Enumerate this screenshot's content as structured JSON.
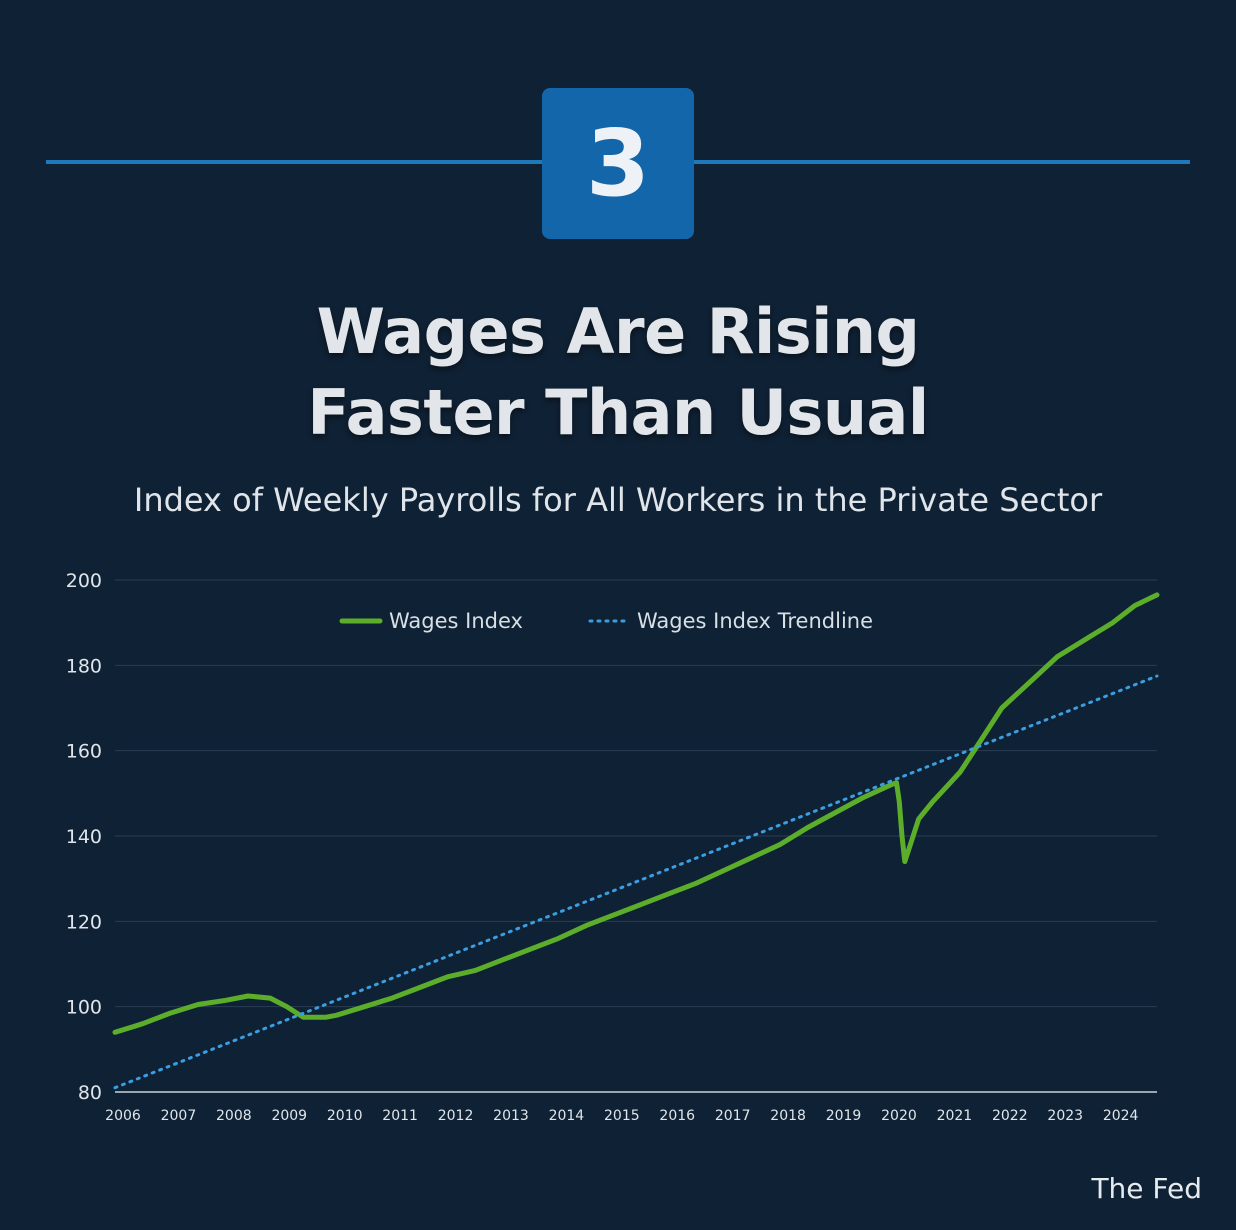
{
  "badge": {
    "number": "3"
  },
  "header": {
    "title_line1": "Wages Are Rising",
    "title_line2": "Faster Than Usual",
    "subtitle": "Index of Weekly Payrolls for All Workers in the Private Sector"
  },
  "footer": {
    "source": "The Fed"
  },
  "colors": {
    "background": "#0f2134",
    "accent": "#1f78b9",
    "badge": "#1366aa",
    "wages_line": "#5cae2a",
    "trendline": "#3a9ee0"
  },
  "chart_data": {
    "type": "line",
    "title": "Index of Weekly Payrolls for All Workers in the Private Sector",
    "xlabel": "",
    "ylabel": "",
    "xlim": [
      2006,
      2024.8
    ],
    "ylim": [
      80,
      200
    ],
    "y_ticks": [
      "80",
      "100",
      "120",
      "140",
      "160",
      "180",
      "200"
    ],
    "x_ticks": [
      "2006",
      "2007",
      "2008",
      "2009",
      "2010",
      "2011",
      "2012",
      "2013",
      "2014",
      "2015",
      "2016",
      "2017",
      "2018",
      "2019",
      "2020",
      "2021",
      "2022",
      "2023",
      "2024"
    ],
    "grid": "horizontal",
    "legend_position": "top-center",
    "series": [
      {
        "name": "Wages Index",
        "style": "solid",
        "points": [
          [
            2006.0,
            94
          ],
          [
            2006.5,
            96
          ],
          [
            2007.0,
            98.5
          ],
          [
            2007.5,
            100.5
          ],
          [
            2008.0,
            101.5
          ],
          [
            2008.4,
            102.5
          ],
          [
            2008.8,
            102
          ],
          [
            2009.1,
            100
          ],
          [
            2009.4,
            97.5
          ],
          [
            2009.8,
            97.5
          ],
          [
            2010.0,
            98
          ],
          [
            2010.5,
            100
          ],
          [
            2011.0,
            102
          ],
          [
            2011.5,
            104.5
          ],
          [
            2012.0,
            107
          ],
          [
            2012.5,
            108.5
          ],
          [
            2013.0,
            111
          ],
          [
            2013.5,
            113.5
          ],
          [
            2014.0,
            116
          ],
          [
            2014.5,
            119
          ],
          [
            2015.0,
            121.5
          ],
          [
            2015.5,
            124
          ],
          [
            2016.0,
            126.5
          ],
          [
            2016.5,
            129
          ],
          [
            2017.0,
            132
          ],
          [
            2017.5,
            135
          ],
          [
            2018.0,
            138
          ],
          [
            2018.5,
            142
          ],
          [
            2019.0,
            145.5
          ],
          [
            2019.5,
            149
          ],
          [
            2020.0,
            152
          ],
          [
            2020.1,
            152.5
          ],
          [
            2020.15,
            148
          ],
          [
            2020.2,
            140
          ],
          [
            2020.25,
            134
          ],
          [
            2020.35,
            138
          ],
          [
            2020.5,
            144
          ],
          [
            2020.75,
            148
          ],
          [
            2021.0,
            151.5
          ],
          [
            2021.25,
            155
          ],
          [
            2021.5,
            160
          ],
          [
            2021.75,
            165
          ],
          [
            2022.0,
            170
          ],
          [
            2022.5,
            176
          ],
          [
            2023.0,
            182
          ],
          [
            2023.5,
            186
          ],
          [
            2024.0,
            190
          ],
          [
            2024.4,
            194
          ],
          [
            2024.8,
            196.5
          ]
        ]
      },
      {
        "name": "Wages Index Trendline",
        "style": "dotted",
        "points": [
          [
            2006.0,
            81
          ],
          [
            2024.8,
            177.5
          ]
        ]
      }
    ]
  }
}
